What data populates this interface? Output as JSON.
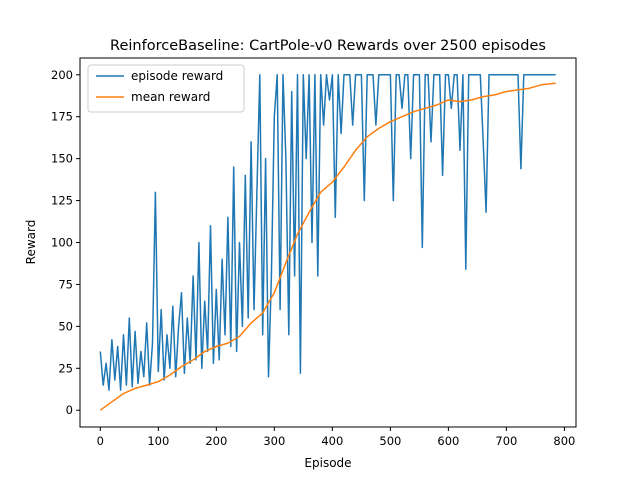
{
  "chart_data": {
    "type": "line",
    "title": "ReinforceBaseline: CartPole-v0 Rewards over 2500 episodes",
    "xlabel": "Episode",
    "ylabel": "Reward",
    "xlim": [
      -35,
      820
    ],
    "ylim": [
      -10,
      210
    ],
    "xticks": [
      0,
      100,
      200,
      300,
      400,
      500,
      600,
      700,
      800
    ],
    "yticks": [
      0,
      25,
      50,
      75,
      100,
      125,
      150,
      175,
      200
    ],
    "grid": false,
    "legend_position": "top-left",
    "series": [
      {
        "name": "episode reward",
        "color": "#1f77b4",
        "x": [
          0,
          5,
          10,
          15,
          20,
          25,
          30,
          35,
          40,
          45,
          50,
          55,
          60,
          65,
          70,
          75,
          80,
          85,
          90,
          95,
          100,
          105,
          110,
          115,
          120,
          125,
          130,
          135,
          140,
          145,
          150,
          155,
          160,
          165,
          170,
          175,
          180,
          185,
          190,
          195,
          200,
          205,
          210,
          215,
          220,
          225,
          230,
          235,
          240,
          245,
          250,
          255,
          260,
          265,
          270,
          275,
          280,
          285,
          290,
          295,
          300,
          305,
          310,
          315,
          320,
          325,
          330,
          335,
          340,
          345,
          350,
          355,
          360,
          365,
          370,
          375,
          380,
          385,
          390,
          395,
          400,
          405,
          410,
          415,
          420,
          425,
          430,
          435,
          440,
          445,
          450,
          455,
          460,
          465,
          470,
          475,
          480,
          485,
          490,
          495,
          500,
          505,
          510,
          515,
          520,
          525,
          530,
          535,
          540,
          545,
          550,
          555,
          560,
          565,
          570,
          575,
          580,
          585,
          590,
          595,
          600,
          605,
          610,
          615,
          620,
          625,
          630,
          635,
          640,
          645,
          650,
          655,
          660,
          665,
          670,
          675,
          680,
          685,
          690,
          695,
          700,
          705,
          710,
          715,
          720,
          725,
          730,
          735,
          740,
          745,
          750,
          755,
          760,
          765,
          770,
          775,
          780,
          785
        ],
        "values": [
          35,
          15,
          28,
          12,
          42,
          18,
          38,
          12,
          45,
          15,
          55,
          14,
          47,
          16,
          35,
          20,
          52,
          15,
          40,
          130,
          23,
          60,
          18,
          45,
          25,
          62,
          20,
          50,
          70,
          22,
          55,
          28,
          80,
          30,
          100,
          25,
          65,
          35,
          110,
          28,
          72,
          30,
          90,
          45,
          115,
          38,
          145,
          35,
          100,
          50,
          140,
          55,
          160,
          60,
          130,
          200,
          45,
          150,
          20,
          80,
          175,
          200,
          60,
          200,
          150,
          45,
          190,
          80,
          200,
          22,
          200,
          150,
          200,
          100,
          200,
          80,
          200,
          170,
          200,
          185,
          200,
          115,
          200,
          165,
          200,
          200,
          200,
          170,
          200,
          200,
          200,
          125,
          200,
          200,
          200,
          170,
          200,
          200,
          200,
          200,
          200,
          125,
          200,
          200,
          180,
          200,
          200,
          150,
          200,
          200,
          200,
          97,
          200,
          200,
          160,
          200,
          200,
          200,
          140,
          200,
          200,
          180,
          200,
          200,
          155,
          200,
          84,
          200,
          200,
          200,
          200,
          200,
          160,
          118,
          200,
          200,
          200,
          200,
          200,
          200,
          200,
          200,
          200,
          200,
          200,
          144,
          200,
          200,
          200,
          200,
          200,
          200,
          200,
          200,
          200,
          200,
          200,
          200
        ]
      },
      {
        "name": "mean reward",
        "color": "#ff7f0e",
        "x": [
          0,
          20,
          40,
          60,
          80,
          100,
          120,
          140,
          160,
          180,
          200,
          220,
          240,
          260,
          280,
          300,
          320,
          340,
          360,
          380,
          400,
          420,
          440,
          460,
          480,
          500,
          520,
          540,
          560,
          580,
          600,
          620,
          640,
          660,
          680,
          700,
          720,
          740,
          760,
          785
        ],
        "values": [
          0,
          5,
          10,
          13,
          15,
          17,
          21,
          26,
          30,
          35,
          38,
          40,
          44,
          52,
          58,
          70,
          88,
          105,
          118,
          130,
          136,
          145,
          155,
          163,
          168,
          172,
          175,
          178,
          180,
          182,
          185,
          184,
          185,
          187,
          188,
          190,
          191,
          192,
          194,
          195
        ]
      }
    ]
  }
}
